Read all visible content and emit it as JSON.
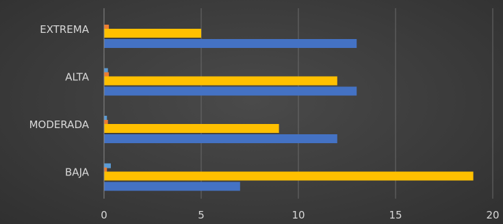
{
  "chart_data": {
    "type": "bar",
    "orientation": "horizontal",
    "categories": [
      "EXTREMA",
      "ALTA",
      "MODERADA",
      "BAJA"
    ],
    "series": [
      {
        "color": "#5b9bd5",
        "values": [
          0,
          0.2,
          0.15,
          0.35
        ]
      },
      {
        "color": "#ed7d31",
        "values": [
          0.25,
          0.25,
          0.2,
          0.15
        ]
      },
      {
        "color": "#ffc000",
        "values": [
          5,
          12,
          9,
          19
        ]
      },
      {
        "color": "#4472c4",
        "values": [
          13,
          13,
          12,
          7
        ]
      }
    ],
    "xlim": [
      0,
      20
    ],
    "xticks": [
      0,
      5,
      10,
      15,
      20
    ],
    "grid": true,
    "legend": "none",
    "title": "",
    "xlabel": "",
    "ylabel": ""
  }
}
